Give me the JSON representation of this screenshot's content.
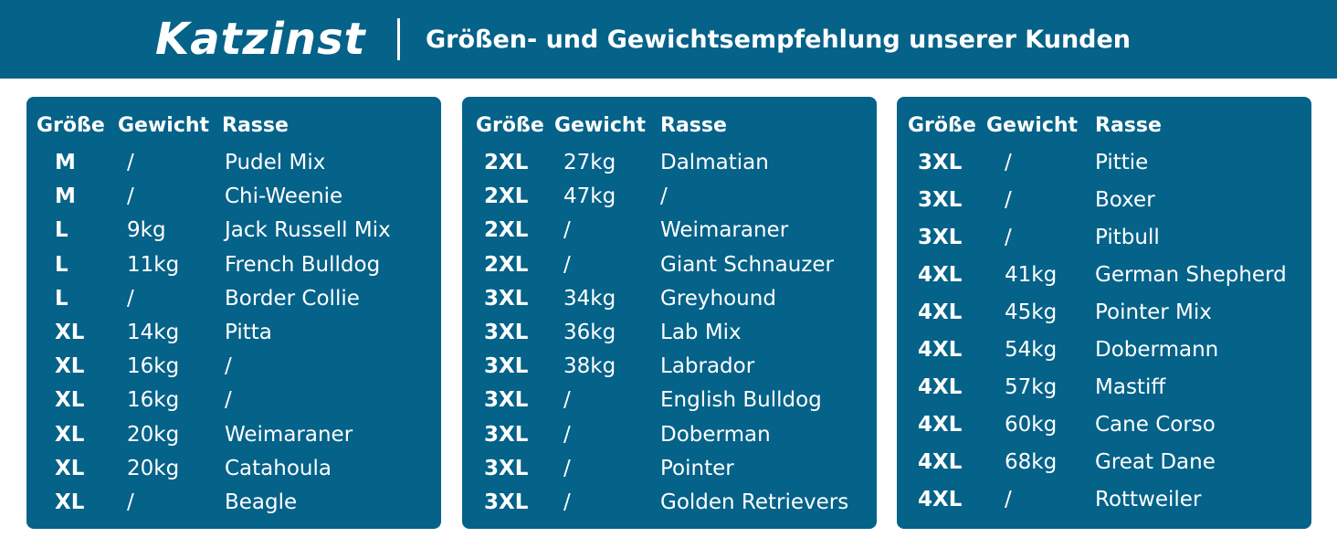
{
  "header": {
    "brand": "Katzinst",
    "subtitle": "Größen- und Gewichtsempfehlung unserer Kunden"
  },
  "columns": {
    "size": "Größe",
    "weight": "Gewicht",
    "breed": "Rasse"
  },
  "panels": [
    {
      "rows": [
        {
          "size": "M",
          "weight": "/",
          "breed": "Pudel Mix"
        },
        {
          "size": "M",
          "weight": "/",
          "breed": "Chi-Weenie"
        },
        {
          "size": "L",
          "weight": "9kg",
          "breed": "Jack Russell Mix"
        },
        {
          "size": "L",
          "weight": "11kg",
          "breed": "French Bulldog"
        },
        {
          "size": "L",
          "weight": "/",
          "breed": "Border Collie"
        },
        {
          "size": "XL",
          "weight": "14kg",
          "breed": "Pitta"
        },
        {
          "size": "XL",
          "weight": "16kg",
          "breed": "/"
        },
        {
          "size": "XL",
          "weight": "16kg",
          "breed": "/"
        },
        {
          "size": "XL",
          "weight": "20kg",
          "breed": "Weimaraner"
        },
        {
          "size": "XL",
          "weight": "20kg",
          "breed": "Catahoula"
        },
        {
          "size": "XL",
          "weight": "/",
          "breed": "Beagle"
        }
      ]
    },
    {
      "rows": [
        {
          "size": "2XL",
          "weight": "27kg",
          "breed": "Dalmatian"
        },
        {
          "size": "2XL",
          "weight": "47kg",
          "breed": "/"
        },
        {
          "size": "2XL",
          "weight": "/",
          "breed": "Weimaraner"
        },
        {
          "size": "2XL",
          "weight": "/",
          "breed": "Giant Schnauzer"
        },
        {
          "size": "3XL",
          "weight": "34kg",
          "breed": "Greyhound"
        },
        {
          "size": "3XL",
          "weight": "36kg",
          "breed": "Lab Mix"
        },
        {
          "size": "3XL",
          "weight": "38kg",
          "breed": "Labrador"
        },
        {
          "size": "3XL",
          "weight": "/",
          "breed": "English Bulldog"
        },
        {
          "size": "3XL",
          "weight": "/",
          "breed": "Doberman"
        },
        {
          "size": "3XL",
          "weight": "/",
          "breed": "Pointer"
        },
        {
          "size": "3XL",
          "weight": "/",
          "breed": "Golden Retrievers"
        }
      ]
    },
    {
      "rows": [
        {
          "size": "3XL",
          "weight": "/",
          "breed": "Pittie"
        },
        {
          "size": "3XL",
          "weight": "/",
          "breed": "Boxer"
        },
        {
          "size": "3XL",
          "weight": "/",
          "breed": "Pitbull"
        },
        {
          "size": "4XL",
          "weight": "41kg",
          "breed": "German Shepherd"
        },
        {
          "size": "4XL",
          "weight": "45kg",
          "breed": "Pointer Mix"
        },
        {
          "size": "4XL",
          "weight": "54kg",
          "breed": "Dobermann"
        },
        {
          "size": "4XL",
          "weight": "57kg",
          "breed": "Mastiff"
        },
        {
          "size": "4XL",
          "weight": "60kg",
          "breed": "Cane Corso"
        },
        {
          "size": "4XL",
          "weight": "68kg",
          "breed": "Great Dane"
        },
        {
          "size": "4XL",
          "weight": "/",
          "breed": "Rottweiler"
        }
      ]
    }
  ]
}
